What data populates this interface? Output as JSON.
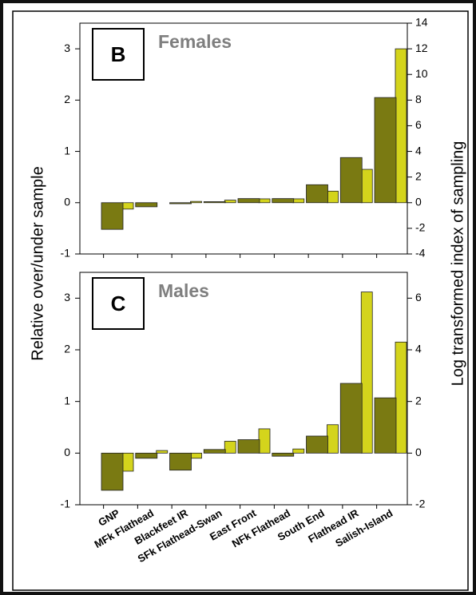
{
  "chart_data": [
    {
      "type": "bar",
      "panel": "B",
      "title": "Females",
      "ylabel": "Relative over/under sample",
      "y2label": "Log transformed index of sampling",
      "ylim": [
        -1,
        3.5
      ],
      "yticks": [
        -1,
        0,
        1,
        2,
        3
      ],
      "y2lim": [
        -4,
        14
      ],
      "y2ticks": [
        -4,
        -2,
        0,
        2,
        4,
        6,
        8,
        10,
        12,
        14
      ],
      "series": [
        {
          "color": "#d4d41c",
          "axis": "y2",
          "values": [
            -0.5,
            0,
            0.1,
            0.2,
            0.3,
            0.3,
            0.9,
            2.6,
            12
          ]
        },
        {
          "color": "#7a7a12",
          "values": [
            -0.52,
            -0.08,
            -0.02,
            0.02,
            0.08,
            0.08,
            0.35,
            0.88,
            2.05
          ]
        }
      ]
    },
    {
      "type": "bar",
      "panel": "C",
      "title": "Males",
      "categories": [
        "GNP",
        "MFk Flathead",
        "Blackfeet IR",
        "SFk Flathead-Swan",
        "East Front",
        "NFk Flathead",
        "South End",
        "Flathead IR",
        "Salish-Island"
      ],
      "ylim": [
        -1,
        3.5
      ],
      "yticks": [
        -1,
        0,
        1,
        2,
        3
      ],
      "y2lim": [
        -2,
        7
      ],
      "y2ticks": [
        -2,
        0,
        2,
        4,
        6
      ],
      "series": [
        {
          "color": "#d4d41c",
          "axis": "y2",
          "values": [
            -0.7,
            0.1,
            -0.2,
            0.46,
            0.94,
            0.16,
            1.1,
            6.24,
            4.3
          ]
        },
        {
          "color": "#7a7a12",
          "values": [
            -0.72,
            -0.1,
            -0.33,
            0.07,
            0.26,
            -0.06,
            0.33,
            1.35,
            1.07
          ]
        }
      ]
    }
  ]
}
